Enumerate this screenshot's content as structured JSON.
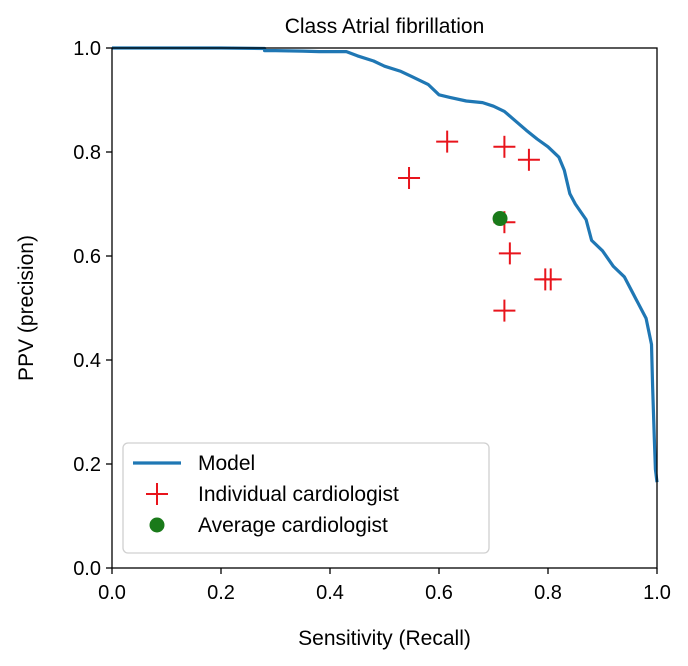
{
  "chart_data": {
    "type": "line",
    "title": "Class Atrial fibrillation",
    "xlabel": "Sensitivity (Recall)",
    "ylabel": "PPV (precision)",
    "xlim": [
      0.0,
      1.0
    ],
    "ylim": [
      0.0,
      1.0
    ],
    "xticks": [
      "0.0",
      "0.2",
      "0.4",
      "0.6",
      "0.8",
      "1.0"
    ],
    "yticks": [
      "0.0",
      "0.2",
      "0.4",
      "0.6",
      "0.8",
      "1.0"
    ],
    "grid": false,
    "legend_position": "lower-left",
    "colors": {
      "model": "#1f77b4",
      "individual": "#e8141c",
      "average": "#1a7a1a"
    },
    "series": [
      {
        "name": "Model",
        "kind": "line",
        "points": [
          [
            0.0,
            1.0
          ],
          [
            0.1,
            1.0
          ],
          [
            0.2,
            1.0
          ],
          [
            0.28,
            0.999
          ],
          [
            0.28,
            0.995
          ],
          [
            0.3,
            0.995
          ],
          [
            0.35,
            0.994
          ],
          [
            0.38,
            0.993
          ],
          [
            0.43,
            0.993
          ],
          [
            0.45,
            0.985
          ],
          [
            0.48,
            0.975
          ],
          [
            0.5,
            0.965
          ],
          [
            0.53,
            0.955
          ],
          [
            0.55,
            0.945
          ],
          [
            0.58,
            0.93
          ],
          [
            0.6,
            0.91
          ],
          [
            0.62,
            0.905
          ],
          [
            0.65,
            0.898
          ],
          [
            0.68,
            0.895
          ],
          [
            0.7,
            0.888
          ],
          [
            0.72,
            0.878
          ],
          [
            0.74,
            0.86
          ],
          [
            0.76,
            0.842
          ],
          [
            0.78,
            0.825
          ],
          [
            0.8,
            0.81
          ],
          [
            0.82,
            0.79
          ],
          [
            0.83,
            0.765
          ],
          [
            0.84,
            0.72
          ],
          [
            0.85,
            0.7
          ],
          [
            0.87,
            0.67
          ],
          [
            0.88,
            0.63
          ],
          [
            0.9,
            0.61
          ],
          [
            0.92,
            0.58
          ],
          [
            0.94,
            0.56
          ],
          [
            0.96,
            0.52
          ],
          [
            0.98,
            0.48
          ],
          [
            0.99,
            0.43
          ],
          [
            0.992,
            0.35
          ],
          [
            0.995,
            0.25
          ],
          [
            0.997,
            0.19
          ],
          [
            1.0,
            0.165
          ]
        ]
      },
      {
        "name": "Individual cardiologist",
        "kind": "scatter",
        "marker": "plus",
        "points": [
          [
            0.545,
            0.75
          ],
          [
            0.615,
            0.82
          ],
          [
            0.72,
            0.81
          ],
          [
            0.765,
            0.785
          ],
          [
            0.72,
            0.665
          ],
          [
            0.73,
            0.605
          ],
          [
            0.795,
            0.555
          ],
          [
            0.805,
            0.555
          ],
          [
            0.72,
            0.495
          ]
        ]
      },
      {
        "name": "Average cardiologist",
        "kind": "scatter",
        "marker": "circle",
        "points": [
          [
            0.712,
            0.672
          ]
        ]
      }
    ]
  }
}
